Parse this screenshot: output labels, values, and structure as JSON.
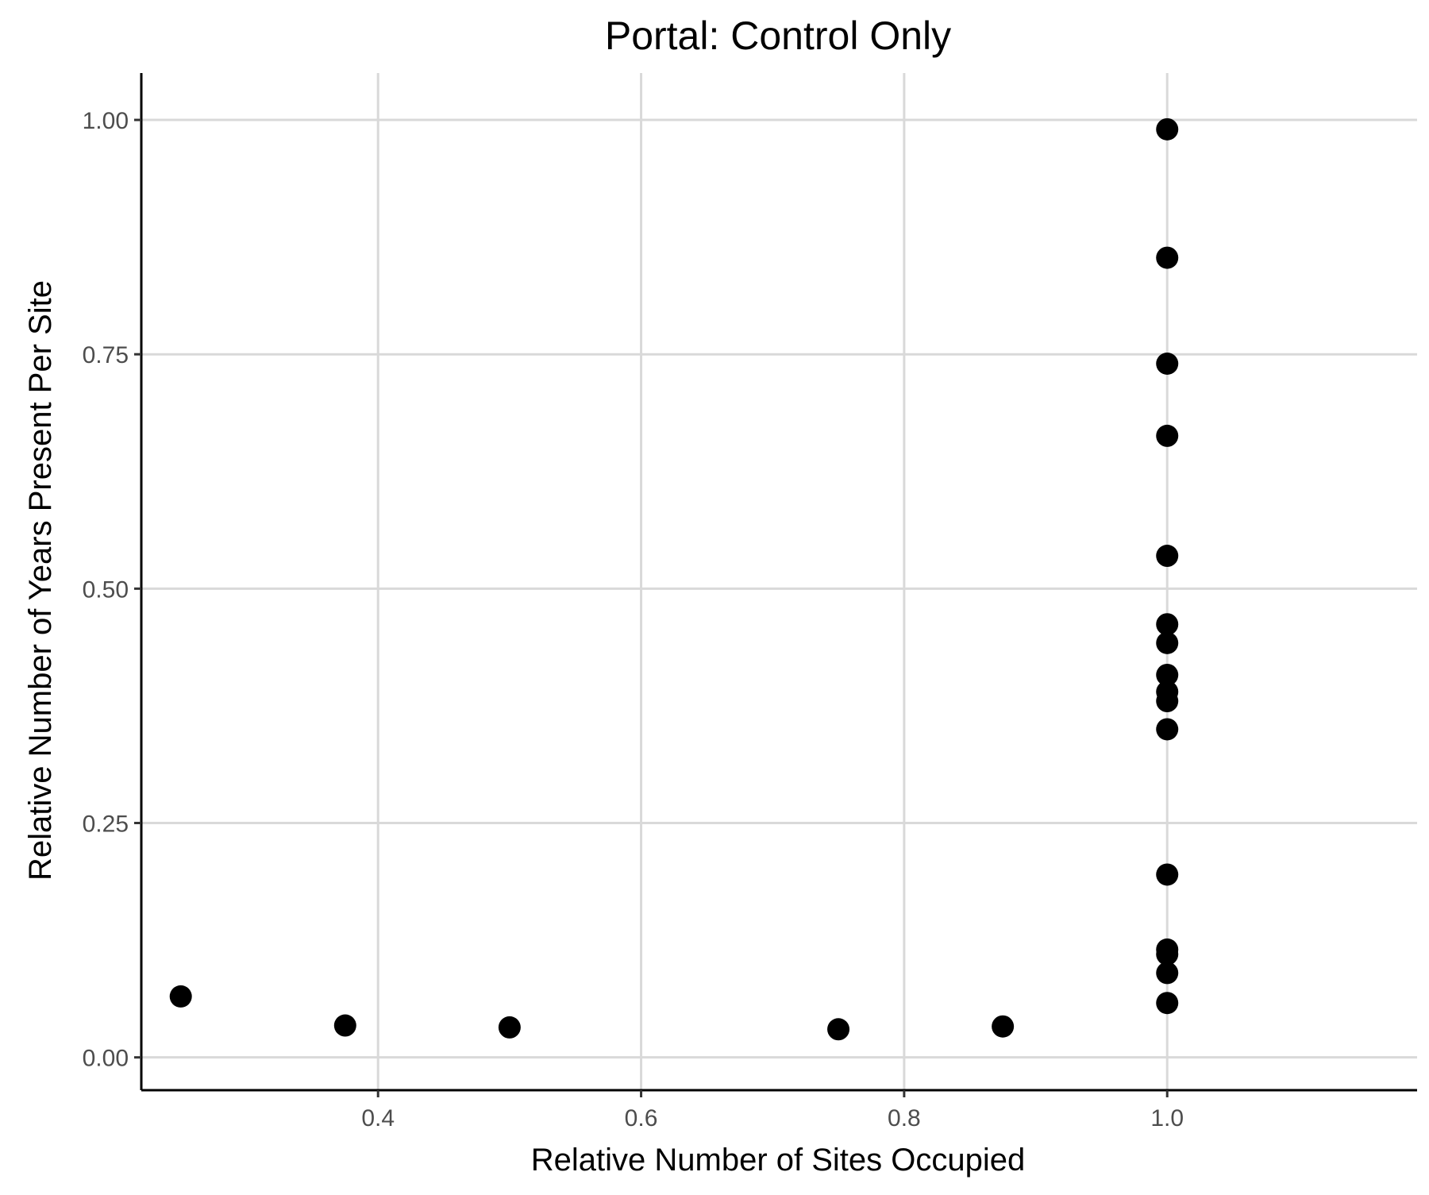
{
  "chart_data": {
    "type": "scatter",
    "title": "Portal: Control Only",
    "xlabel": "Relative Number of Sites Occupied",
    "ylabel": "Relative Number of Years Present Per Site",
    "xlim": [
      0.22,
      1.19
    ],
    "ylim": [
      -0.035,
      1.05
    ],
    "x_ticks": [
      {
        "value": 0.4,
        "label": "0.4"
      },
      {
        "value": 0.6,
        "label": "0.6"
      },
      {
        "value": 0.8,
        "label": "0.8"
      },
      {
        "value": 1.0,
        "label": "1.0"
      }
    ],
    "y_ticks": [
      {
        "value": 0.0,
        "label": "0.00"
      },
      {
        "value": 0.25,
        "label": "0.25"
      },
      {
        "value": 0.5,
        "label": "0.50"
      },
      {
        "value": 0.75,
        "label": "0.75"
      },
      {
        "value": 1.0,
        "label": "1.00"
      }
    ],
    "grid": true,
    "legend": "none",
    "point_color": "#000000",
    "points": [
      {
        "x": 0.25,
        "y": 0.065
      },
      {
        "x": 0.375,
        "y": 0.034
      },
      {
        "x": 0.5,
        "y": 0.032
      },
      {
        "x": 0.75,
        "y": 0.03
      },
      {
        "x": 0.875,
        "y": 0.033
      },
      {
        "x": 1.0,
        "y": 0.99
      },
      {
        "x": 1.0,
        "y": 0.853
      },
      {
        "x": 1.0,
        "y": 0.74
      },
      {
        "x": 1.0,
        "y": 0.663
      },
      {
        "x": 1.0,
        "y": 0.535
      },
      {
        "x": 1.0,
        "y": 0.462
      },
      {
        "x": 1.0,
        "y": 0.442
      },
      {
        "x": 1.0,
        "y": 0.408
      },
      {
        "x": 1.0,
        "y": 0.39
      },
      {
        "x": 1.0,
        "y": 0.38
      },
      {
        "x": 1.0,
        "y": 0.35
      },
      {
        "x": 1.0,
        "y": 0.195
      },
      {
        "x": 1.0,
        "y": 0.115
      },
      {
        "x": 1.0,
        "y": 0.11
      },
      {
        "x": 1.0,
        "y": 0.09
      },
      {
        "x": 1.0,
        "y": 0.058
      }
    ]
  }
}
